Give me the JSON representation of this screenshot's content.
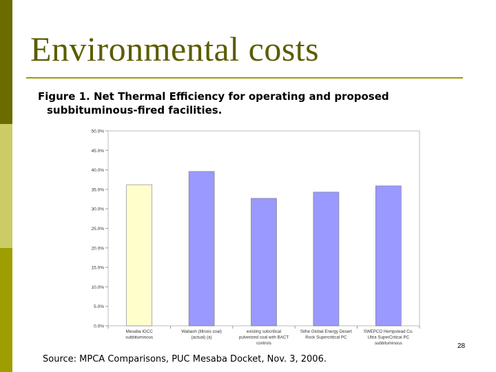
{
  "slide": {
    "title": "Environmental costs",
    "caption_line1": "Figure 1.  Net Thermal Efficiency for operating and proposed",
    "caption_line2": "subbituminous-fired facilities.",
    "source": "Source: MPCA Comparisons, PUC Mesaba Docket, Nov. 3, 2006.",
    "slide_number": "28"
  },
  "colors": {
    "sidebar_dark": "#6b6b00",
    "sidebar_light": "#cccc66",
    "sidebar_mid": "#9e9e00",
    "title": "#5c5c00",
    "rule": "#a09a00",
    "bar_highlight": "#ffffcc",
    "bar_default": "#9999ff"
  },
  "chart_data": {
    "type": "bar",
    "categories": [
      [
        "Mesaba IGCC",
        "subbituminous"
      ],
      [
        "Wabash (Illinois coal)",
        "(actual) (a)"
      ],
      [
        "existing subcritical",
        "pulverized coal with BACT",
        "controls"
      ],
      [
        "Sithe Global Energy Desert",
        "Rock Supercritical PC"
      ],
      [
        "SWEPCO Hempstead Co.",
        "Ultra SuperCritical PC",
        "subbituminous"
      ]
    ],
    "values": [
      36.2,
      39.6,
      32.7,
      34.3,
      35.9
    ],
    "bar_colors": [
      "#ffffcc",
      "#9999ff",
      "#9999ff",
      "#9999ff",
      "#9999ff"
    ],
    "ylim": [
      0,
      50
    ],
    "y_ticks": [
      "0.0%",
      "5.0%",
      "10.0%",
      "15.0%",
      "20.0%",
      "25.0%",
      "30.0%",
      "35.0%",
      "40.0%",
      "45.0%",
      "50.0%"
    ],
    "grid": false,
    "legend": "none"
  }
}
